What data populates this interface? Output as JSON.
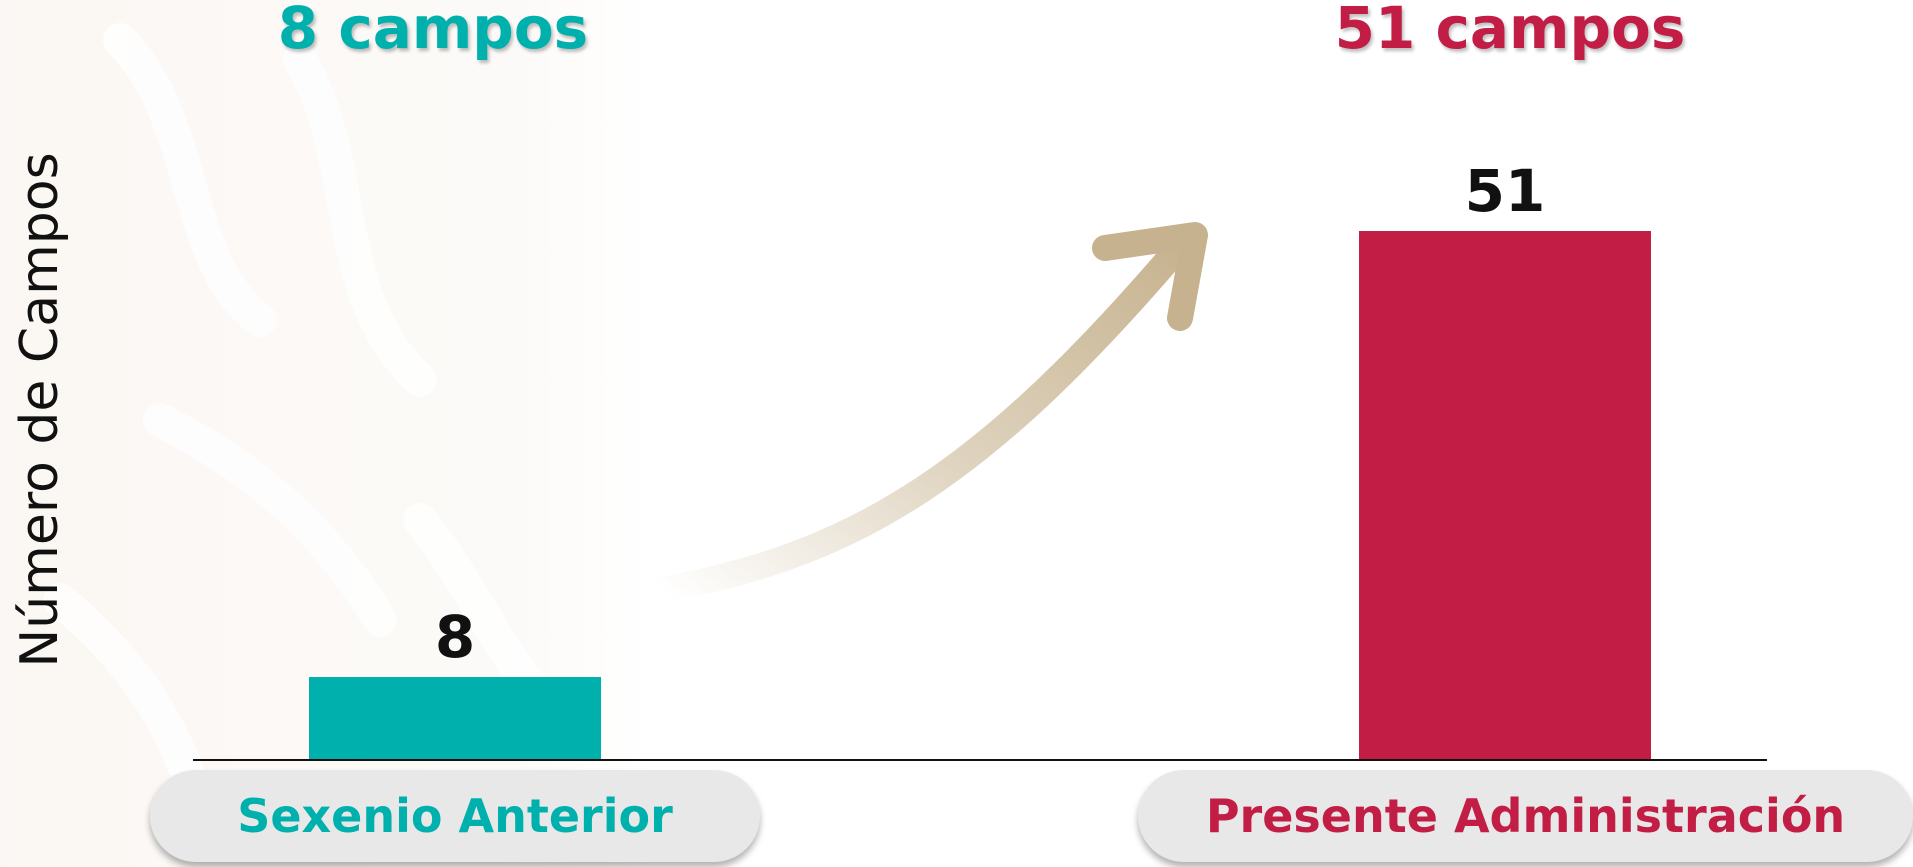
{
  "chart_data": {
    "type": "bar",
    "title": "",
    "xlabel": "",
    "ylabel": "Número de Campos",
    "categories": [
      "Sexenio Anterior",
      "Presente Administración"
    ],
    "values": [
      8,
      51
    ],
    "header_labels": [
      "8 campos",
      "51 campos"
    ],
    "ylim": [
      0,
      51
    ],
    "grid": false,
    "legend": "none",
    "colors": [
      "#00b0ad",
      "#c11d45"
    ]
  },
  "colors": {
    "teal": "#00b0ad",
    "crimson": "#c11d45",
    "arrow": "#c6b28e"
  }
}
